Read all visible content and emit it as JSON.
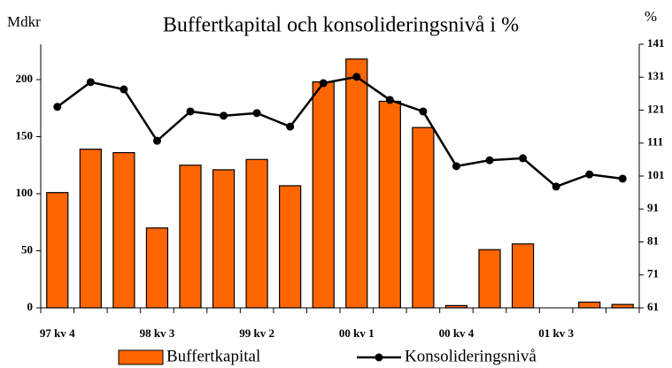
{
  "chart_data": {
    "type": "bar_line",
    "title": "Buffertkapital och konsolideringsnivå i %",
    "y_label": "Mdkr",
    "y2_label": "%",
    "categories": [
      "97 kv 4",
      null,
      null,
      "98 kv 3",
      null,
      null,
      "99 kv 2",
      null,
      null,
      "00 kv 1",
      null,
      null,
      "00 kv 4",
      null,
      null,
      "01 kv 3",
      null,
      null
    ],
    "series": [
      {
        "name": "Buffertkapital",
        "type": "bar",
        "color": "#ff6600",
        "values": [
          101,
          139,
          136,
          70,
          125,
          121,
          130,
          107,
          198,
          218,
          181,
          158,
          2,
          51,
          56,
          0,
          5,
          3
        ]
      },
      {
        "name": "Konsolideringsnivå",
        "type": "line",
        "axis": "y2",
        "color": "#000000",
        "values": [
          122,
          129.5,
          127.3,
          111.7,
          120.6,
          119.3,
          120.1,
          116,
          129.2,
          131.1,
          124.1,
          120.6,
          104,
          105.8,
          106.4,
          97.8,
          101.5,
          100.2
        ]
      }
    ],
    "ylim": [
      0,
      231
    ],
    "yticks": [
      0,
      50,
      100,
      150,
      200
    ],
    "y2lim": [
      61,
      141
    ],
    "y2ticks": [
      61,
      71,
      81,
      91,
      101,
      111,
      121,
      131,
      141
    ],
    "legend": "bottom"
  }
}
